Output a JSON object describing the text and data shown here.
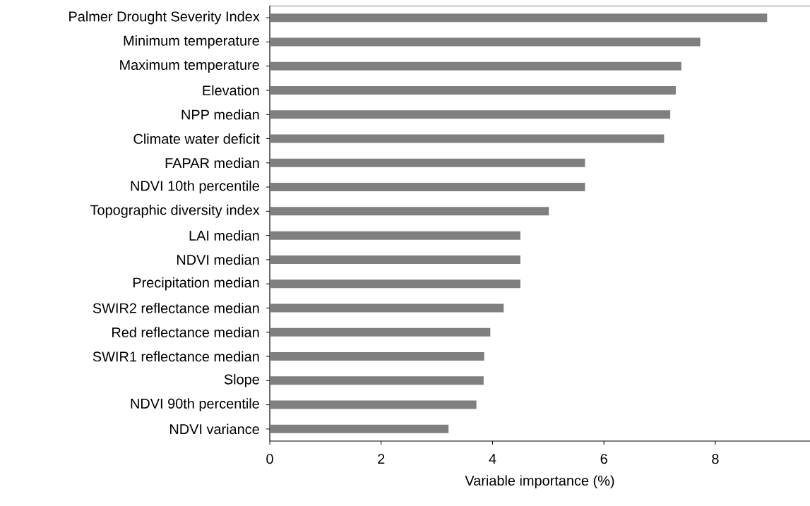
{
  "chart_data": {
    "type": "bar",
    "orientation": "horizontal",
    "xlabel": "Variable importance (%)",
    "categories": [
      "Palmer Drought Severity Index",
      "Minimum temperature",
      "Maximum temperature",
      "Elevation",
      "NPP median",
      "Climate water deficit",
      "FAPAR median",
      "NDVI 10th percentile",
      "Topographic diversity index",
      "LAI median",
      "NDVI median",
      "Precipitation median",
      "SWIR2 reflectance median",
      "Red reflectance median",
      "SWIR1 reflectance median",
      "Slope",
      "NDVI 90th percentile",
      "NDVI variance"
    ],
    "values": [
      8.93,
      7.73,
      7.39,
      7.29,
      7.19,
      7.08,
      5.66,
      5.66,
      5.01,
      4.5,
      4.5,
      4.5,
      4.2,
      3.96,
      3.85,
      3.84,
      3.71,
      3.21
    ],
    "color": "#7f7f7f",
    "xlim": [
      0,
      9.7
    ],
    "xticks": [
      0,
      2,
      4,
      6,
      8
    ]
  }
}
